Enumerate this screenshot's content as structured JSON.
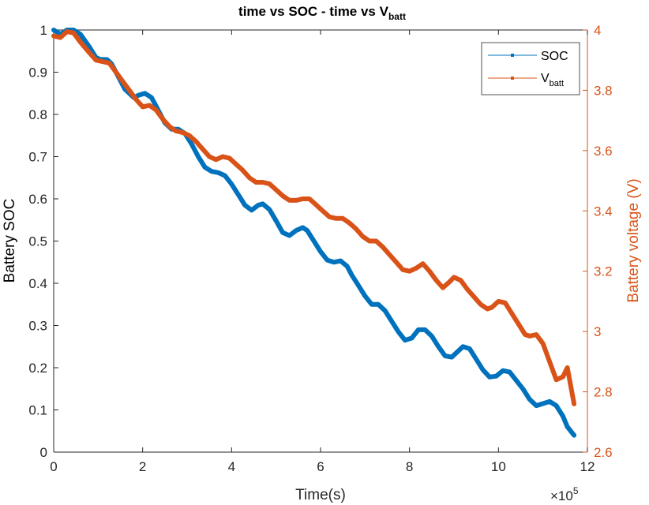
{
  "chart_data": {
    "type": "line",
    "title": "time vs SOC - time vs V",
    "title_sub": "batt",
    "xlabel": "Time(s)",
    "x_exponent_base": "×10",
    "x_exponent_power": "5",
    "ylabel_left": "Battery SOC",
    "ylabel_right": "Battery voltage (V)",
    "xlim": [
      0,
      12
    ],
    "ylim_left": [
      0,
      1
    ],
    "ylim_right": [
      2.6,
      4.0
    ],
    "x_ticks": [
      "0",
      "2",
      "4",
      "6",
      "8",
      "10",
      "12"
    ],
    "y_ticks_left": [
      "0",
      "0.1",
      "0.2",
      "0.3",
      "0.4",
      "0.5",
      "0.6",
      "0.7",
      "0.8",
      "0.9",
      "1"
    ],
    "y_ticks_right": [
      "2.6",
      "2.8",
      "3",
      "3.2",
      "3.4",
      "3.6",
      "3.8",
      "4"
    ],
    "grid": false,
    "legend_position": "top-right",
    "series": [
      {
        "name": "SOC",
        "axis": "left",
        "color": "#0072BD",
        "x": [
          0,
          0.15,
          0.3,
          0.45,
          0.6,
          0.8,
          0.95,
          1.05,
          1.2,
          1.3,
          1.45,
          1.6,
          1.8,
          1.9,
          2.05,
          2.2,
          2.35,
          2.5,
          2.65,
          2.8,
          2.95,
          3.1,
          3.25,
          3.4,
          3.55,
          3.7,
          3.85,
          4.0,
          4.15,
          4.3,
          4.45,
          4.6,
          4.7,
          4.85,
          5.0,
          5.15,
          5.3,
          5.45,
          5.6,
          5.7,
          5.85,
          6.0,
          6.15,
          6.3,
          6.45,
          6.6,
          6.7,
          6.85,
          7.0,
          7.15,
          7.3,
          7.45,
          7.6,
          7.75,
          7.9,
          8.05,
          8.2,
          8.35,
          8.5,
          8.65,
          8.8,
          8.95,
          9.05,
          9.2,
          9.35,
          9.5,
          9.65,
          9.8,
          9.95,
          10.1,
          10.25,
          10.4,
          10.55,
          10.7,
          10.85,
          11.0,
          11.15,
          11.3,
          11.45,
          11.55,
          11.7
        ],
        "y": [
          1.0,
          0.99,
          1.0,
          1.0,
          0.99,
          0.96,
          0.935,
          0.93,
          0.93,
          0.92,
          0.89,
          0.86,
          0.84,
          0.845,
          0.85,
          0.84,
          0.81,
          0.78,
          0.765,
          0.765,
          0.755,
          0.73,
          0.7,
          0.675,
          0.665,
          0.662,
          0.655,
          0.635,
          0.61,
          0.585,
          0.573,
          0.585,
          0.588,
          0.575,
          0.548,
          0.52,
          0.513,
          0.525,
          0.532,
          0.525,
          0.5,
          0.475,
          0.455,
          0.45,
          0.453,
          0.44,
          0.42,
          0.395,
          0.37,
          0.35,
          0.35,
          0.335,
          0.31,
          0.285,
          0.265,
          0.27,
          0.29,
          0.29,
          0.275,
          0.25,
          0.228,
          0.225,
          0.235,
          0.25,
          0.245,
          0.22,
          0.195,
          0.178,
          0.18,
          0.193,
          0.19,
          0.17,
          0.15,
          0.125,
          0.11,
          0.115,
          0.12,
          0.11,
          0.085,
          0.06,
          0.04
        ]
      },
      {
        "name": "V",
        "name_sub": "batt",
        "axis": "right",
        "color": "#D95319",
        "x": [
          0,
          0.15,
          0.3,
          0.45,
          0.6,
          0.8,
          0.95,
          1.1,
          1.25,
          1.4,
          1.55,
          1.7,
          1.85,
          2.0,
          2.15,
          2.3,
          2.45,
          2.6,
          2.75,
          2.9,
          3.05,
          3.2,
          3.35,
          3.5,
          3.65,
          3.8,
          3.95,
          4.1,
          4.25,
          4.4,
          4.55,
          4.7,
          4.85,
          5.0,
          5.15,
          5.3,
          5.45,
          5.6,
          5.75,
          5.9,
          6.05,
          6.2,
          6.35,
          6.5,
          6.65,
          6.8,
          6.95,
          7.1,
          7.25,
          7.4,
          7.55,
          7.7,
          7.85,
          8.0,
          8.15,
          8.3,
          8.45,
          8.6,
          8.75,
          8.9,
          9.0,
          9.15,
          9.3,
          9.45,
          9.6,
          9.75,
          9.85,
          10.0,
          10.15,
          10.3,
          10.45,
          10.6,
          10.7,
          10.85,
          11.0,
          11.15,
          11.3,
          11.45,
          11.55,
          11.7
        ],
        "y": [
          3.98,
          3.975,
          3.995,
          3.99,
          3.96,
          3.925,
          3.9,
          3.895,
          3.89,
          3.86,
          3.83,
          3.8,
          3.77,
          3.745,
          3.75,
          3.735,
          3.705,
          3.68,
          3.665,
          3.66,
          3.65,
          3.63,
          3.605,
          3.58,
          3.57,
          3.58,
          3.575,
          3.555,
          3.535,
          3.51,
          3.495,
          3.495,
          3.49,
          3.47,
          3.45,
          3.435,
          3.435,
          3.44,
          3.44,
          3.42,
          3.4,
          3.38,
          3.375,
          3.375,
          3.36,
          3.34,
          3.315,
          3.3,
          3.3,
          3.28,
          3.255,
          3.23,
          3.205,
          3.2,
          3.21,
          3.225,
          3.2,
          3.17,
          3.145,
          3.165,
          3.18,
          3.17,
          3.14,
          3.115,
          3.09,
          3.075,
          3.08,
          3.1,
          3.095,
          3.06,
          3.025,
          2.99,
          2.985,
          2.99,
          2.96,
          2.9,
          2.84,
          2.85,
          2.88,
          2.76
        ]
      }
    ]
  }
}
